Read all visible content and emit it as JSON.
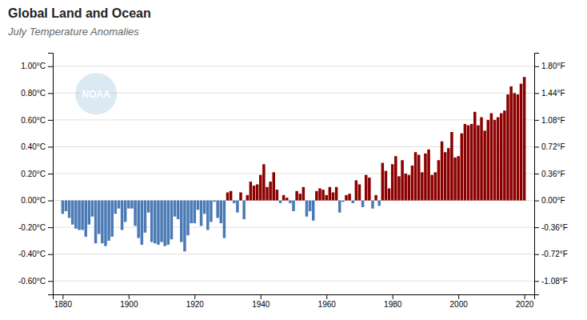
{
  "chart_data": {
    "type": "bar",
    "title": "Global Land and Ocean",
    "subtitle": "July Temperature Anomalies",
    "annotations": [
      "NOAA"
    ],
    "x": [
      1880,
      1881,
      1882,
      1883,
      1884,
      1885,
      1886,
      1887,
      1888,
      1889,
      1890,
      1891,
      1892,
      1893,
      1894,
      1895,
      1896,
      1897,
      1898,
      1899,
      1900,
      1901,
      1902,
      1903,
      1904,
      1905,
      1906,
      1907,
      1908,
      1909,
      1910,
      1911,
      1912,
      1913,
      1914,
      1915,
      1916,
      1917,
      1918,
      1919,
      1920,
      1921,
      1922,
      1923,
      1924,
      1925,
      1926,
      1927,
      1928,
      1929,
      1930,
      1931,
      1932,
      1933,
      1934,
      1935,
      1936,
      1937,
      1938,
      1939,
      1940,
      1941,
      1942,
      1943,
      1944,
      1945,
      1946,
      1947,
      1948,
      1949,
      1950,
      1951,
      1952,
      1953,
      1954,
      1955,
      1956,
      1957,
      1958,
      1959,
      1960,
      1961,
      1962,
      1963,
      1964,
      1965,
      1966,
      1967,
      1968,
      1969,
      1970,
      1971,
      1972,
      1973,
      1974,
      1975,
      1976,
      1977,
      1978,
      1979,
      1980,
      1981,
      1982,
      1983,
      1984,
      1985,
      1986,
      1987,
      1988,
      1989,
      1990,
      1991,
      1992,
      1993,
      1994,
      1995,
      1996,
      1997,
      1998,
      1999,
      2000,
      2001,
      2002,
      2003,
      2004,
      2005,
      2006,
      2007,
      2008,
      2009,
      2010,
      2011,
      2012,
      2013,
      2014,
      2015,
      2016,
      2017,
      2018,
      2019,
      2020
    ],
    "values": [
      -0.1,
      -0.08,
      -0.13,
      -0.18,
      -0.21,
      -0.22,
      -0.22,
      -0.27,
      -0.18,
      -0.12,
      -0.32,
      -0.25,
      -0.32,
      -0.34,
      -0.3,
      -0.27,
      -0.1,
      -0.06,
      -0.22,
      -0.16,
      -0.06,
      -0.06,
      -0.19,
      -0.28,
      -0.33,
      -0.24,
      -0.09,
      -0.31,
      -0.32,
      -0.33,
      -0.31,
      -0.34,
      -0.33,
      -0.29,
      -0.12,
      -0.14,
      -0.31,
      -0.38,
      -0.26,
      -0.17,
      -0.17,
      -0.07,
      -0.19,
      -0.1,
      -0.22,
      -0.16,
      -0.01,
      -0.13,
      -0.17,
      -0.28,
      0.06,
      0.07,
      -0.02,
      -0.09,
      0.06,
      -0.14,
      0.04,
      0.14,
      0.11,
      0.12,
      0.19,
      0.27,
      0.1,
      0.14,
      0.21,
      0.08,
      -0.02,
      0.04,
      0.02,
      -0.02,
      -0.08,
      0.07,
      0.05,
      0.1,
      -0.12,
      -0.08,
      -0.15,
      0.07,
      0.09,
      0.08,
      0.04,
      0.1,
      0.06,
      0.1,
      -0.09,
      -0.01,
      0.04,
      0.05,
      -0.02,
      0.15,
      0.12,
      -0.05,
      0.19,
      0.17,
      -0.06,
      0.04,
      -0.04,
      0.28,
      0.22,
      0.09,
      0.27,
      0.33,
      0.18,
      0.3,
      0.2,
      0.19,
      0.26,
      0.36,
      0.34,
      0.21,
      0.35,
      0.38,
      0.19,
      0.21,
      0.3,
      0.44,
      0.36,
      0.39,
      0.51,
      0.32,
      0.33,
      0.5,
      0.57,
      0.56,
      0.57,
      0.66,
      0.56,
      0.62,
      0.52,
      0.6,
      0.65,
      0.6,
      0.62,
      0.65,
      0.67,
      0.79,
      0.85,
      0.8,
      0.79,
      0.87,
      0.92
    ],
    "colors": [
      "#4a7ab5",
      "#4a7ab5",
      "#4a7ab5",
      "#4a7ab5",
      "#4a7ab5",
      "#4a7ab5",
      "#4a7ab5",
      "#4a7ab5",
      "#4a7ab5",
      "#4a7ab5",
      "#4a7ab5",
      "#4a7ab5",
      "#4a7ab5",
      "#4a7ab5",
      "#4a7ab5",
      "#4a7ab5",
      "#4a7ab5",
      "#4a7ab5",
      "#4a7ab5",
      "#4a7ab5",
      "#4a7ab5",
      "#4a7ab5",
      "#4a7ab5",
      "#4a7ab5",
      "#4a7ab5",
      "#4a7ab5",
      "#4a7ab5",
      "#4a7ab5",
      "#4a7ab5",
      "#4a7ab5",
      "#4a7ab5",
      "#4a7ab5",
      "#4a7ab5",
      "#4a7ab5",
      "#4a7ab5",
      "#4a7ab5",
      "#4a7ab5",
      "#4a7ab5",
      "#4a7ab5",
      "#4a7ab5",
      "#4a7ab5",
      "#4a7ab5",
      "#4a7ab5",
      "#4a7ab5",
      "#4a7ab5",
      "#4a7ab5",
      "#4a7ab5",
      "#4a7ab5",
      "#4a7ab5",
      "#4a7ab5",
      "#8B0000",
      "#8B0000",
      "#4a7ab5",
      "#4a7ab5",
      "#8B0000",
      "#4a7ab5",
      "#8B0000",
      "#8B0000",
      "#8B0000",
      "#8B0000",
      "#8B0000",
      "#8B0000",
      "#8B0000",
      "#8B0000",
      "#8B0000",
      "#8B0000",
      "#4a7ab5",
      "#8B0000",
      "#8B0000",
      "#4a7ab5",
      "#4a7ab5",
      "#8B0000",
      "#8B0000",
      "#8B0000",
      "#4a7ab5",
      "#4a7ab5",
      "#4a7ab5",
      "#8B0000",
      "#8B0000",
      "#8B0000",
      "#8B0000",
      "#8B0000",
      "#8B0000",
      "#8B0000",
      "#4a7ab5",
      "#4a7ab5",
      "#8B0000",
      "#8B0000",
      "#4a7ab5",
      "#8B0000",
      "#8B0000",
      "#4a7ab5",
      "#8B0000",
      "#8B0000",
      "#4a7ab5",
      "#8B0000",
      "#4a7ab5",
      "#8B0000",
      "#8B0000",
      "#8B0000",
      "#8B0000",
      "#8B0000",
      "#8B0000",
      "#8B0000",
      "#8B0000",
      "#8B0000",
      "#8B0000",
      "#8B0000",
      "#8B0000",
      "#8B0000",
      "#8B0000",
      "#8B0000",
      "#8B0000",
      "#8B0000",
      "#8B0000",
      "#8B0000",
      "#8B0000",
      "#8B0000",
      "#8B0000",
      "#8B0000",
      "#8B0000",
      "#8B0000",
      "#8B0000",
      "#8B0000",
      "#8B0000",
      "#8B0000",
      "#8B0000",
      "#8B0000",
      "#8B0000",
      "#8B0000",
      "#8B0000",
      "#8B0000",
      "#8B0000",
      "#8B0000",
      "#8B0000",
      "#8B0000",
      "#8B0000",
      "#8B0000",
      "#8B0000",
      "#8B0000",
      "#8B0000"
    ],
    "xlim": [
      1877,
      2023
    ],
    "xticks": [
      1880,
      1900,
      1920,
      1940,
      1960,
      1980,
      2000,
      2020
    ],
    "ylim": [
      -0.7,
      1.1
    ],
    "yticks": [
      {
        "value": -0.6,
        "label": "-0.60°C"
      },
      {
        "value": -0.4,
        "label": "-0.40°C"
      },
      {
        "value": -0.2,
        "label": "-0.20°C"
      },
      {
        "value": 0.0,
        "label": "0.00°C"
      },
      {
        "value": 0.2,
        "label": "0.20°C"
      },
      {
        "value": 0.4,
        "label": "0.40°C"
      },
      {
        "value": 0.6,
        "label": "0.60°C"
      },
      {
        "value": 0.8,
        "label": "0.80°C"
      },
      {
        "value": 1.0,
        "label": "1.00°C"
      }
    ],
    "y2lim": [
      -0.7,
      1.1
    ],
    "y2ticks": [
      {
        "value": -0.6,
        "label": "-1.08°F"
      },
      {
        "value": -0.4,
        "label": "-0.72°F"
      },
      {
        "value": -0.2,
        "label": "-0.36°F"
      },
      {
        "value": 0.0,
        "label": "0.00°F"
      },
      {
        "value": 0.2,
        "label": "0.36°F"
      },
      {
        "value": 0.4,
        "label": "0.72°F"
      },
      {
        "value": 0.6,
        "label": "1.08°F"
      },
      {
        "value": 0.8,
        "label": "1.44°F"
      },
      {
        "value": 1.0,
        "label": "1.80°F"
      }
    ],
    "grid": true
  }
}
